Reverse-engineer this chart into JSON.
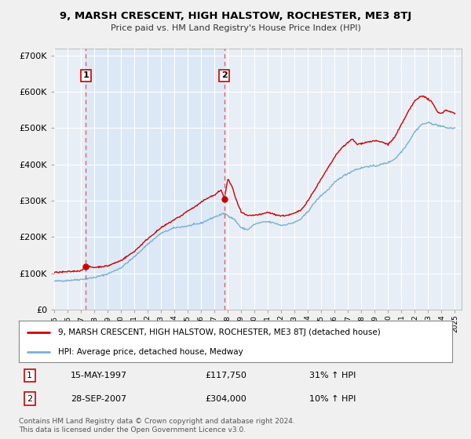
{
  "title": "9, MARSH CRESCENT, HIGH HALSTOW, ROCHESTER, ME3 8TJ",
  "subtitle": "Price paid vs. HM Land Registry's House Price Index (HPI)",
  "bg_color": "#f0f0f0",
  "plot_bg_color": "#e8eef5",
  "highlight_color": "#dce8f5",
  "grid_color": "#ffffff",
  "ylim": [
    0,
    720000
  ],
  "yticks": [
    0,
    100000,
    200000,
    300000,
    400000,
    500000,
    600000,
    700000
  ],
  "ytick_labels": [
    "£0",
    "£100K",
    "£200K",
    "£300K",
    "£400K",
    "£500K",
    "£600K",
    "£700K"
  ],
  "sale1": {
    "date_num": 1997.37,
    "price": 117750,
    "label": "1",
    "date_str": "15-MAY-1997",
    "price_str": "£117,750",
    "hpi_str": "31% ↑ HPI"
  },
  "sale2": {
    "date_num": 2007.74,
    "price": 304000,
    "label": "2",
    "date_str": "28-SEP-2007",
    "price_str": "£304,000",
    "hpi_str": "10% ↑ HPI"
  },
  "legend_line1": "9, MARSH CRESCENT, HIGH HALSTOW, ROCHESTER, ME3 8TJ (detached house)",
  "legend_line2": "HPI: Average price, detached house, Medway",
  "footer": "Contains HM Land Registry data © Crown copyright and database right 2024.\nThis data is licensed under the Open Government Licence v3.0.",
  "hpi_color": "#7ab0d4",
  "price_color": "#cc0000",
  "dashed_line_color": "#e06060"
}
